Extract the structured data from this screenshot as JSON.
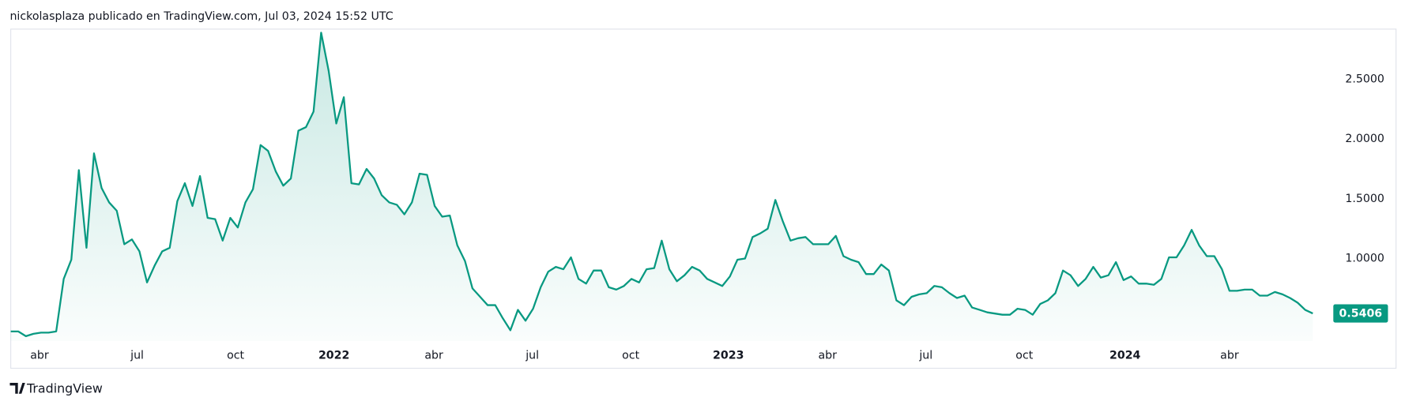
{
  "header": "nickolasplaza publicado en TradingView.com, Jul 03, 2024 15:52 UTC",
  "footer": "TradingView",
  "chart_data": {
    "type": "area",
    "color": "#089981",
    "values": [
      0.39,
      0.39,
      0.35,
      0.37,
      0.38,
      0.38,
      0.39,
      0.83,
      0.99,
      1.74,
      1.09,
      1.88,
      1.59,
      1.47,
      1.4,
      1.12,
      1.16,
      1.06,
      0.8,
      0.94,
      1.06,
      1.09,
      1.48,
      1.63,
      1.44,
      1.69,
      1.34,
      1.33,
      1.15,
      1.34,
      1.26,
      1.47,
      1.58,
      1.95,
      1.9,
      1.73,
      1.61,
      1.67,
      2.07,
      2.1,
      2.23,
      2.89,
      2.57,
      2.13,
      2.35,
      1.63,
      1.62,
      1.75,
      1.67,
      1.53,
      1.47,
      1.45,
      1.37,
      1.47,
      1.71,
      1.7,
      1.44,
      1.35,
      1.36,
      1.11,
      0.98,
      0.75,
      0.68,
      0.61,
      0.61,
      0.5,
      0.4,
      0.57,
      0.48,
      0.58,
      0.76,
      0.89,
      0.93,
      0.91,
      1.01,
      0.83,
      0.79,
      0.9,
      0.9,
      0.76,
      0.74,
      0.77,
      0.83,
      0.8,
      0.91,
      0.92,
      1.15,
      0.91,
      0.81,
      0.86,
      0.93,
      0.9,
      0.83,
      0.8,
      0.77,
      0.85,
      0.99,
      1.0,
      1.18,
      1.21,
      1.25,
      1.49,
      1.31,
      1.15,
      1.17,
      1.18,
      1.12,
      1.12,
      1.12,
      1.19,
      1.02,
      0.99,
      0.97,
      0.87,
      0.87,
      0.95,
      0.9,
      0.65,
      0.61,
      0.68,
      0.7,
      0.71,
      0.77,
      0.76,
      0.71,
      0.67,
      0.69,
      0.59,
      0.57,
      0.55,
      0.54,
      0.53,
      0.53,
      0.58,
      0.57,
      0.53,
      0.62,
      0.65,
      0.71,
      0.9,
      0.86,
      0.77,
      0.83,
      0.93,
      0.84,
      0.86,
      0.97,
      0.82,
      0.85,
      0.79,
      0.79,
      0.78,
      0.83,
      1.01,
      1.01,
      1.11,
      1.24,
      1.11,
      1.02,
      1.02,
      0.91,
      0.73,
      0.73,
      0.74,
      0.74,
      0.69,
      0.69,
      0.72,
      0.7,
      0.67,
      0.63,
      0.57,
      0.5406
    ],
    "xlim": [
      0,
      183
    ],
    "xticks": [
      {
        "value": 3.8,
        "label": "abr"
      },
      {
        "value": 16.7,
        "label": "jul"
      },
      {
        "value": 29.7,
        "label": "oct"
      },
      {
        "value": 42.7,
        "label": "2022"
      },
      {
        "value": 55.9,
        "label": "abr"
      },
      {
        "value": 68.9,
        "label": "jul"
      },
      {
        "value": 81.9,
        "label": "oct"
      },
      {
        "value": 94.8,
        "label": "2023"
      },
      {
        "value": 107.9,
        "label": "abr"
      },
      {
        "value": 120.9,
        "label": "jul"
      },
      {
        "value": 133.9,
        "label": "oct"
      },
      {
        "value": 147.2,
        "label": "2024"
      },
      {
        "value": 161.0,
        "label": "abr"
      }
    ],
    "ylim": [
      0.31,
      2.92
    ],
    "yticks": [
      {
        "value": 1,
        "label": "1.0000"
      },
      {
        "value": 1.5,
        "label": "1.5000"
      },
      {
        "value": 2,
        "label": "2.0000"
      },
      {
        "value": 2.5,
        "label": "2.5000"
      }
    ],
    "grid": false
  }
}
